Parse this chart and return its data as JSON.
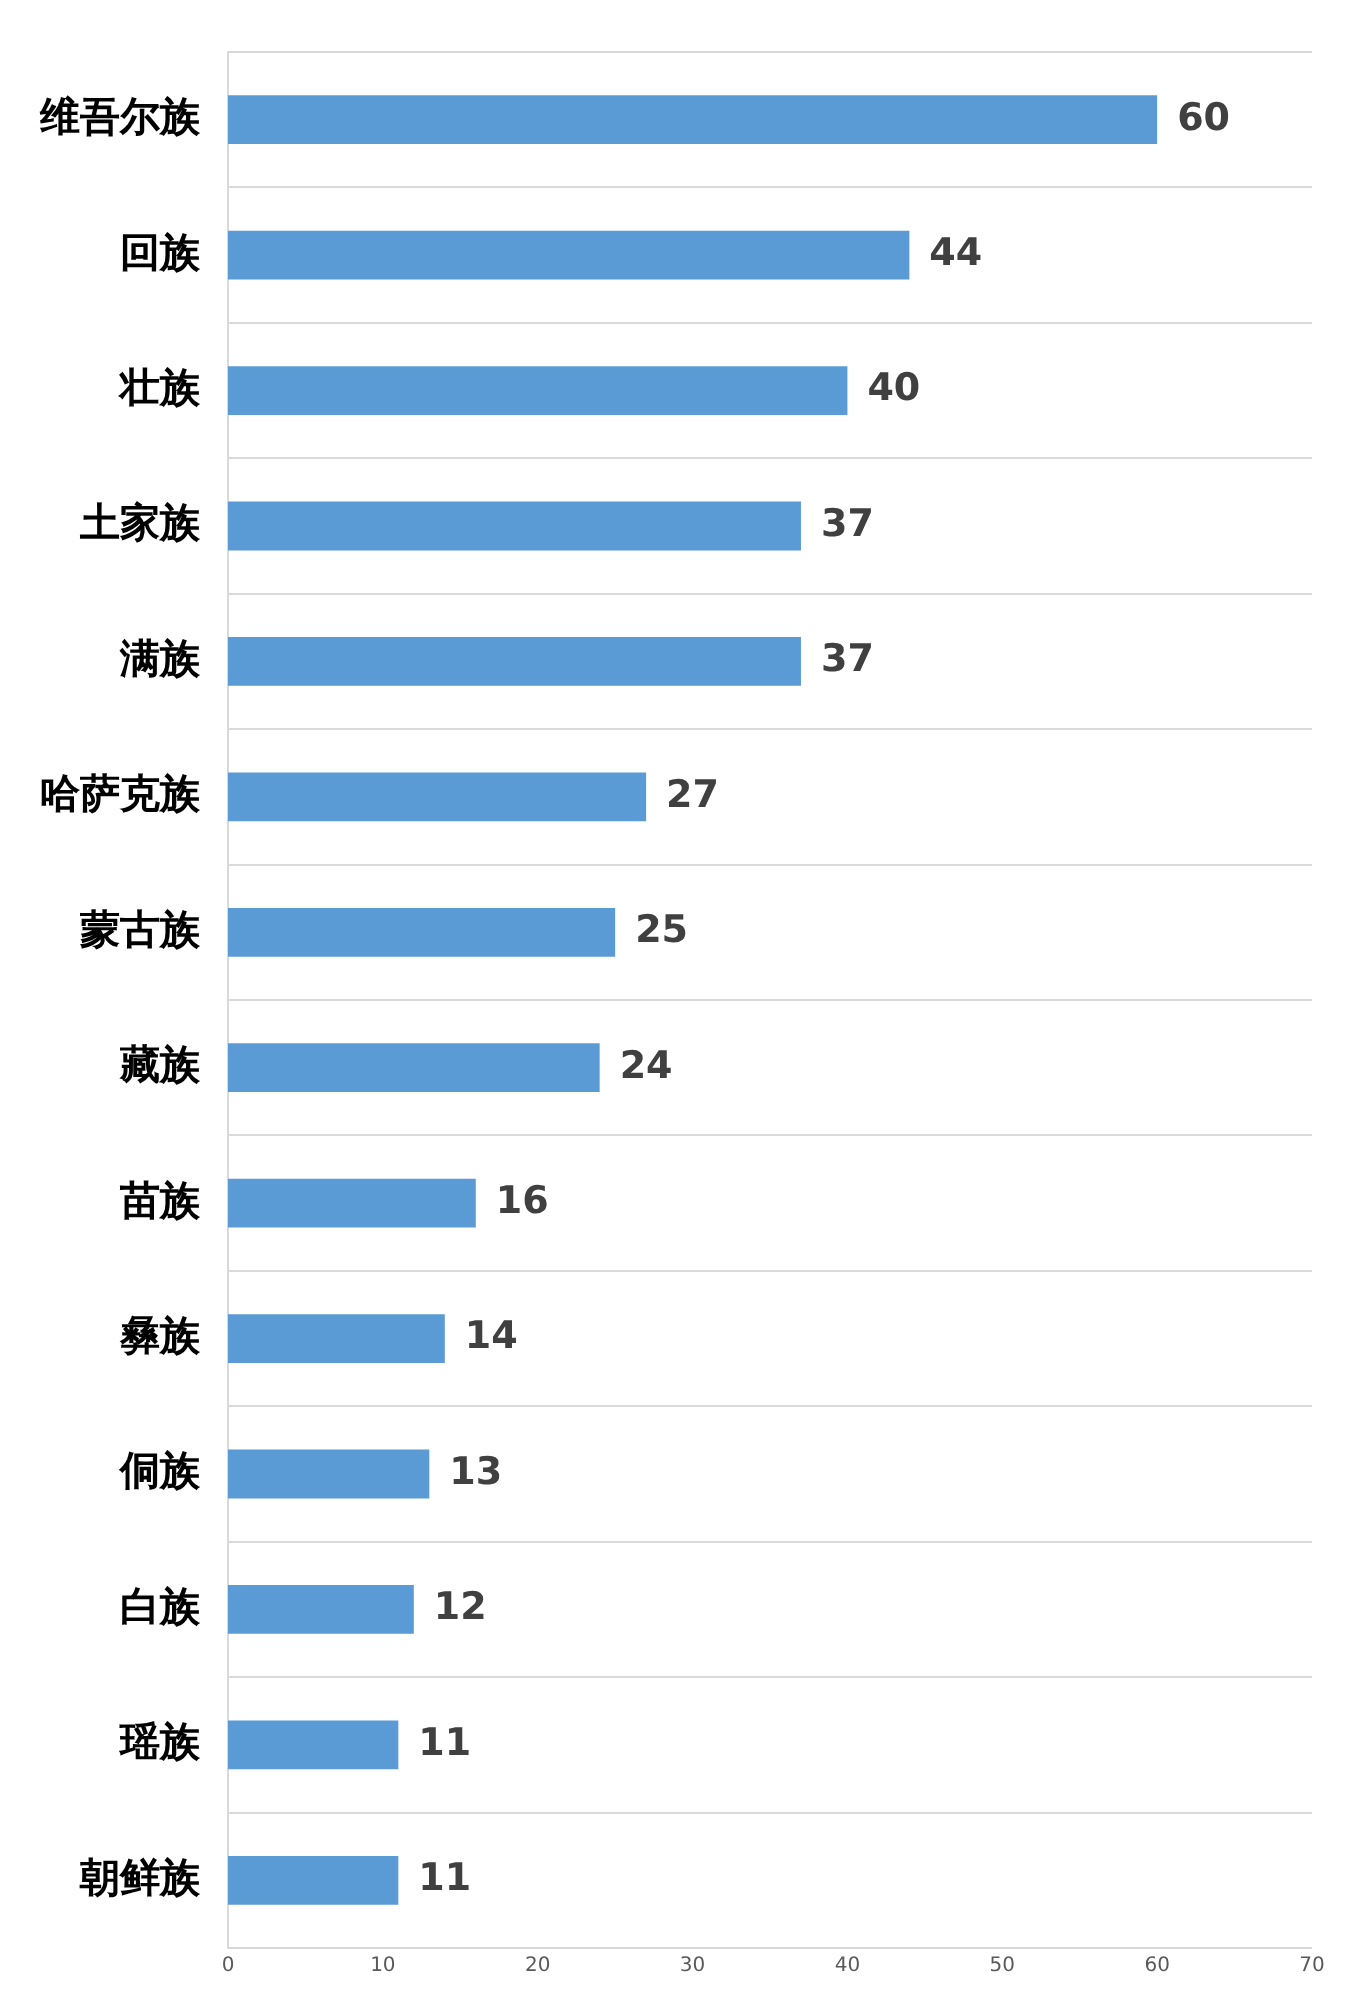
{
  "chart_data": {
    "type": "bar",
    "orientation": "horizontal",
    "categories": [
      "维吾尔族",
      "回族",
      "壮族",
      "土家族",
      "满族",
      "哈萨克族",
      "蒙古族",
      "藏族",
      "苗族",
      "彝族",
      "侗族",
      "白族",
      "瑶族",
      "朝鲜族"
    ],
    "values": [
      60,
      44,
      40,
      37,
      37,
      27,
      25,
      24,
      16,
      14,
      13,
      12,
      11,
      11
    ],
    "color": "#5b9bd5",
    "xlim": [
      0,
      70
    ],
    "xticks": [
      0,
      10,
      20,
      30,
      40,
      50,
      60,
      70
    ],
    "grid": "y",
    "legend": false,
    "data_labels": true
  }
}
